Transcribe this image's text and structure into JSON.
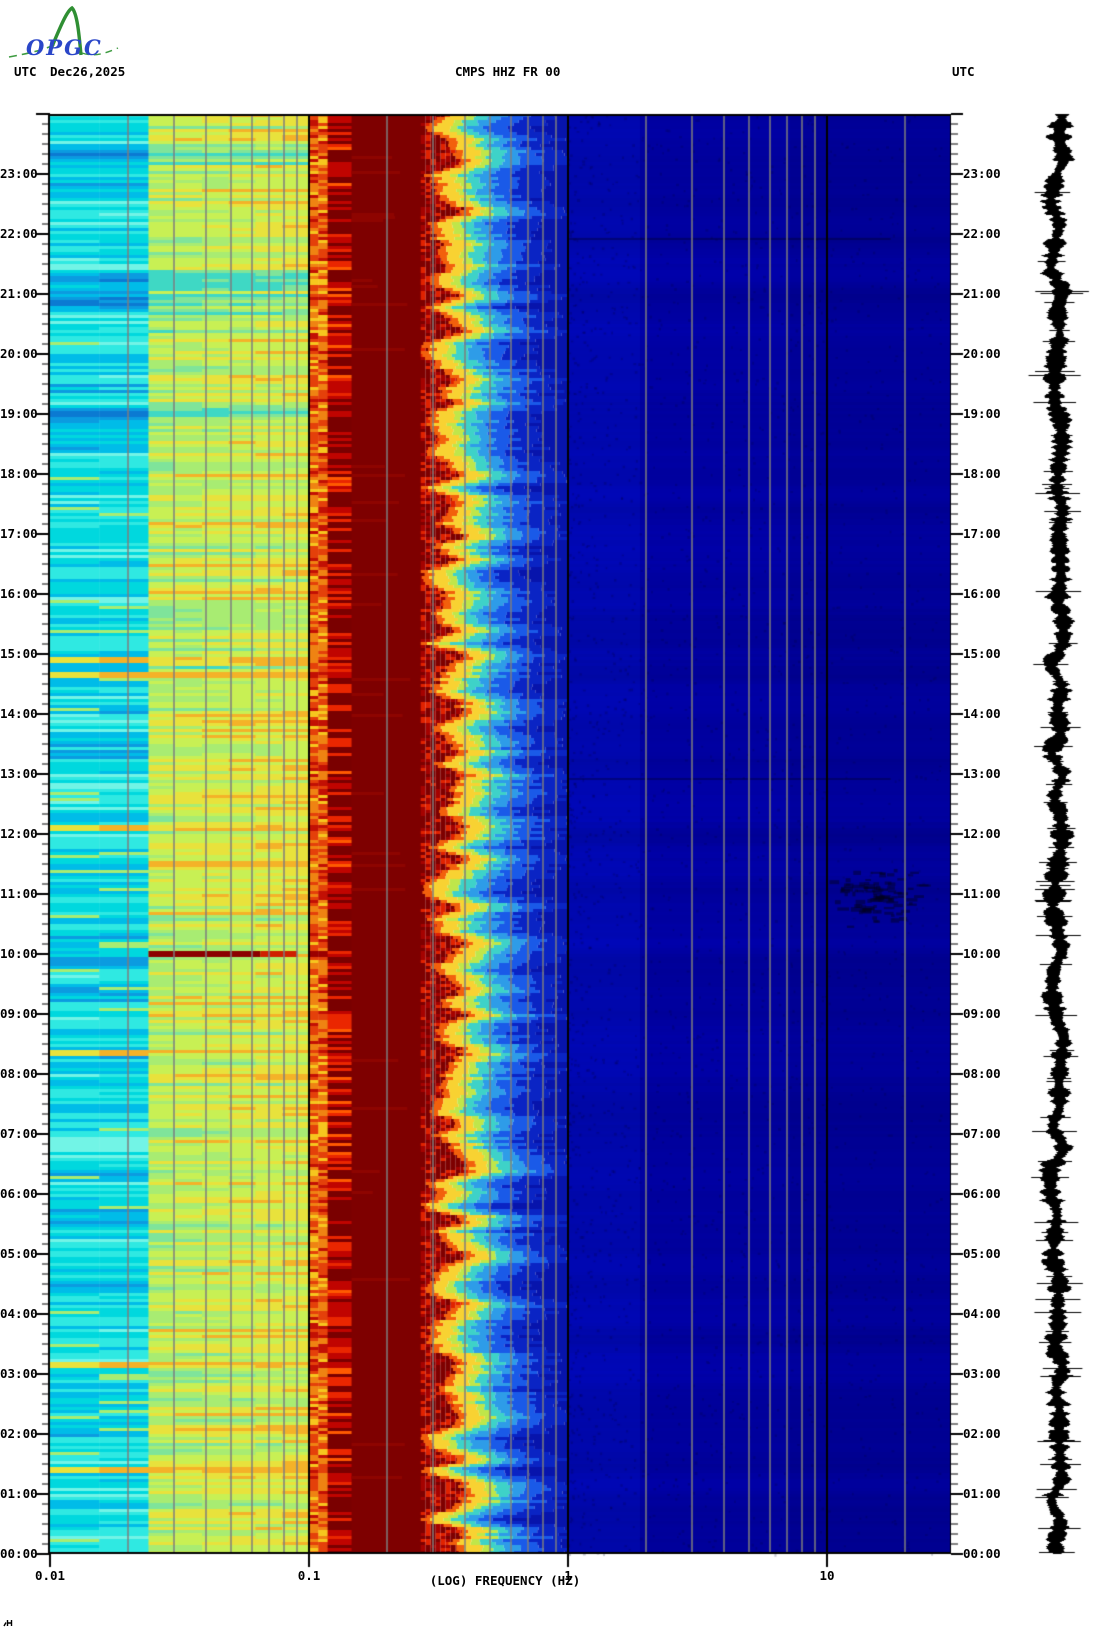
{
  "header": {
    "utc_label_left": "UTC",
    "date": "Dec26,2025",
    "title": "CMPS HHZ FR 00",
    "utc_label_right": "UTC"
  },
  "logo": {
    "org": "OPGC"
  },
  "axes": {
    "x": {
      "label": "(LOG) FREQUENCY (HZ)",
      "scale": "log",
      "min_hz": 0.01,
      "max_hz": 30,
      "ticks": [
        {
          "label": "0.01",
          "hz": 0.01
        },
        {
          "label": "0.1",
          "hz": 0.1
        },
        {
          "label": "1",
          "hz": 1
        },
        {
          "label": "10",
          "hz": 10
        }
      ],
      "major_gridlines_hz": [
        0.1,
        1,
        10
      ],
      "minor_gridlines_hz": [
        0.02,
        0.03,
        0.04,
        0.05,
        0.06,
        0.07,
        0.08,
        0.09,
        0.2,
        0.3,
        0.4,
        0.5,
        0.6,
        0.7,
        0.8,
        0.9,
        2,
        3,
        4,
        5,
        6,
        7,
        8,
        9,
        20
      ]
    },
    "y": {
      "unit": "UTC",
      "bottom": "00:00",
      "top": "24:00",
      "minor_tick_minutes": 10,
      "hour_labels": [
        "23:00",
        "22:00",
        "21:00",
        "20:00",
        "19:00",
        "18:00",
        "17:00",
        "16:00",
        "15:00",
        "14:00",
        "13:00",
        "12:00",
        "11:00",
        "10:00",
        "09:00",
        "08:00",
        "07:00",
        "06:00",
        "05:00",
        "04:00",
        "03:00",
        "02:00",
        "01:00",
        "00:00"
      ]
    }
  },
  "chart_data": {
    "type": "heatmap",
    "subtype": "24-hour seismic spectrogram",
    "title": "CMPS HHZ FR 00",
    "date_utc": "Dec26,2025",
    "time_span_hours": 24,
    "time_direction": "time increases upward, 00:00 at bottom, 24:00 at top",
    "frequency_range_hz": [
      0.01,
      30
    ],
    "frequency_bands": [
      {
        "name": "very-low-background",
        "f_hz": [
          0.01,
          0.024
        ],
        "texture": "horizontal-stripes",
        "palette": [
          "#0b7ad2",
          "#0b9be0",
          "#00bce8",
          "#00d8de",
          "#2fe9e2",
          "#72f4e6"
        ],
        "accent": "#a8ec72"
      },
      {
        "name": "low-background",
        "f_hz": [
          0.024,
          0.1
        ],
        "texture": "mottled",
        "palette": [
          "#3fd8c4",
          "#7fe49a",
          "#a8ec72",
          "#c8f054",
          "#e8e23c",
          "#f4b228"
        ]
      },
      {
        "name": "microseism-onset",
        "f_hz": [
          0.1,
          0.118
        ],
        "texture": "warm-dashes",
        "palette": [
          "#f4ea3c",
          "#f6c61e",
          "#ef8312",
          "#e4400a",
          "#c21004"
        ]
      },
      {
        "name": "microseism-striped",
        "f_hz": [
          0.118,
          0.146
        ],
        "texture": "red-stripes",
        "palette": [
          "#7a0000",
          "#c00400",
          "#ea2600",
          "#ff5a00"
        ]
      },
      {
        "name": "microseism-peak-saturated",
        "f_hz": [
          0.146,
          0.27
        ],
        "texture": "solid",
        "palette": [
          "#7e0000"
        ]
      },
      {
        "name": "microseism-upper-edge",
        "f_hz": [
          0.27,
          0.38
        ],
        "texture": "noisy-cells",
        "palette": [
          "#7e0000",
          "#a50200",
          "#e02200"
        ]
      },
      {
        "name": "rolloff-gradient",
        "f_hz": [
          0.38,
          1.0
        ],
        "texture": "noisy-gradient",
        "palette": [
          "#f2600c",
          "#f8d232",
          "#bfe64a",
          "#3ed2c8",
          "#2e9ce8",
          "#1a5ae8",
          "#0a24c4",
          "#0714ac"
        ]
      },
      {
        "name": "high-frequency-quiet",
        "f_hz": [
          1.0,
          30
        ],
        "texture": "flat-speckled",
        "palette": [
          "#0008b4",
          "#0000a0",
          "#000094"
        ],
        "speckle_color": "rgba(0,0,60,0.22)"
      }
    ],
    "notable_features": [
      {
        "utc": "10:00",
        "type": "strong_transient_line",
        "f_lo_hz": 0.024,
        "f_hi_hz": 0.065,
        "f_hi_bright_hz": 0.09,
        "color": "#8b0000",
        "color_bright": "#cf2000"
      },
      {
        "utc": "10:30",
        "utc_end": "11:30",
        "type": "dark_patch_cluster",
        "f_lo_hz": 9,
        "f_hi_hz": 25,
        "color": "rgba(0,0,30,0.45)"
      },
      {
        "utc": "19:00",
        "type": "dark_blue_stripe_low_f"
      },
      {
        "utc": "20:50",
        "type": "dark_blue_stripe_low_f"
      },
      {
        "utc": "21:15",
        "type": "dark_blue_stripe_low_f"
      },
      {
        "utc": "23:20",
        "type": "dark_blue_stripe_low_f"
      },
      {
        "utc": "21:57",
        "type": "faint_dark_row_high_f"
      },
      {
        "utc": "12:58",
        "type": "faint_dark_row_high_f"
      },
      {
        "utc": "01:25",
        "type": "warm_row_low_f"
      },
      {
        "utc": "03:10",
        "type": "warm_row_low_f"
      },
      {
        "utc": "08:20",
        "type": "warm_row_low_f"
      },
      {
        "utc": "12:05",
        "type": "warm_row_low_f"
      },
      {
        "utc": "14:40",
        "type": "warm_row_low_f"
      },
      {
        "utc": "14:55",
        "type": "warm_row_low_f"
      }
    ],
    "side_trace": {
      "description": "vertical 24-hour seismogram amplitude trace",
      "color": "#000000"
    },
    "gridline_colors": {
      "minor": "#7d7d7d",
      "major": "#000000"
    }
  }
}
